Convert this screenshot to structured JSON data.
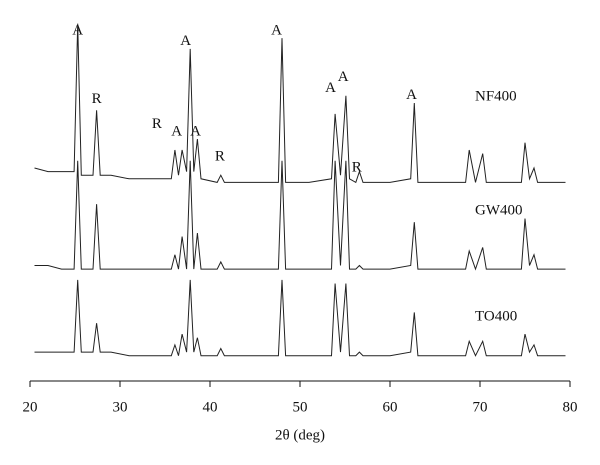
{
  "chart_data": {
    "type": "line",
    "x_label": "2θ (deg)",
    "x": [
      20.5,
      22,
      23.5,
      24.9,
      25.3,
      25.7,
      27.0,
      27.4,
      27.8,
      29,
      31,
      33,
      35.7,
      36.1,
      36.5,
      36.9,
      37.4,
      37.8,
      38.2,
      38.6,
      39.0,
      40.8,
      41.2,
      41.6,
      44,
      47.6,
      48.0,
      48.4,
      51,
      53.5,
      53.9,
      54.5,
      55.1,
      55.5,
      56.2,
      56.6,
      57.0,
      60,
      62.3,
      62.7,
      63.1,
      66,
      68.4,
      68.8,
      69.5,
      70.3,
      70.7,
      73,
      74.6,
      75.0,
      75.5,
      76.0,
      76.4,
      78,
      79.5
    ],
    "series": [
      {
        "name": "NF400",
        "color": "#222222",
        "values": [
          59,
          58,
          58,
          58,
          99,
          57,
          57,
          75,
          57,
          57,
          56,
          56,
          56,
          64,
          57,
          64,
          58,
          92,
          58,
          67,
          56,
          55,
          57,
          55,
          55,
          55,
          95,
          55,
          55,
          56,
          74,
          57,
          79,
          56,
          55,
          58,
          55,
          55,
          56,
          77,
          55,
          55,
          55,
          64,
          55,
          63,
          55,
          55,
          55,
          66,
          56,
          59,
          55,
          55,
          55
        ]
      },
      {
        "name": "GW400",
        "color": "#222222",
        "values": [
          32,
          32,
          31,
          31,
          61,
          31,
          31,
          49,
          31,
          31,
          31,
          31,
          31,
          35,
          31,
          40,
          31,
          61,
          31,
          41,
          31,
          31,
          33,
          31,
          31,
          31,
          61,
          31,
          31,
          31,
          61,
          32,
          61,
          31,
          31,
          32,
          31,
          31,
          32,
          44,
          31,
          31,
          31,
          36,
          31,
          37,
          31,
          31,
          31,
          45,
          32,
          35,
          31,
          31,
          31
        ]
      },
      {
        "name": "TO400",
        "color": "#222222",
        "values": [
          8,
          8,
          8,
          8,
          28,
          8,
          8,
          16,
          8,
          8,
          7,
          7,
          7,
          10,
          7,
          13,
          8,
          28,
          8,
          12,
          7,
          7,
          9,
          7,
          7,
          7,
          28,
          7,
          7,
          7,
          27,
          8,
          27,
          7,
          7,
          8,
          7,
          7,
          8,
          19,
          7,
          7,
          7,
          11,
          7,
          11,
          7,
          7,
          7,
          13,
          8,
          10,
          7,
          7,
          7
        ]
      }
    ],
    "annotations": [
      {
        "text": "A",
        "x": 25.3,
        "y": 97
      },
      {
        "text": "R",
        "x": 27.4,
        "y": 78
      },
      {
        "text": "R",
        "x": 34.1,
        "y": 71
      },
      {
        "text": "A",
        "x": 36.3,
        "y": 69
      },
      {
        "text": "A",
        "x": 37.3,
        "y": 94
      },
      {
        "text": "A",
        "x": 38.4,
        "y": 69
      },
      {
        "text": "R",
        "x": 41.1,
        "y": 62
      },
      {
        "text": "A",
        "x": 47.4,
        "y": 97
      },
      {
        "text": "A",
        "x": 53.4,
        "y": 81
      },
      {
        "text": "A",
        "x": 54.8,
        "y": 84
      },
      {
        "text": "R",
        "x": 56.3,
        "y": 59
      },
      {
        "text": "A",
        "x": 62.4,
        "y": 79
      }
    ],
    "xlim": [
      20,
      80
    ],
    "xticks": [
      20,
      30,
      40,
      50,
      60,
      70,
      80
    ],
    "ylim": [
      0,
      100
    ]
  }
}
